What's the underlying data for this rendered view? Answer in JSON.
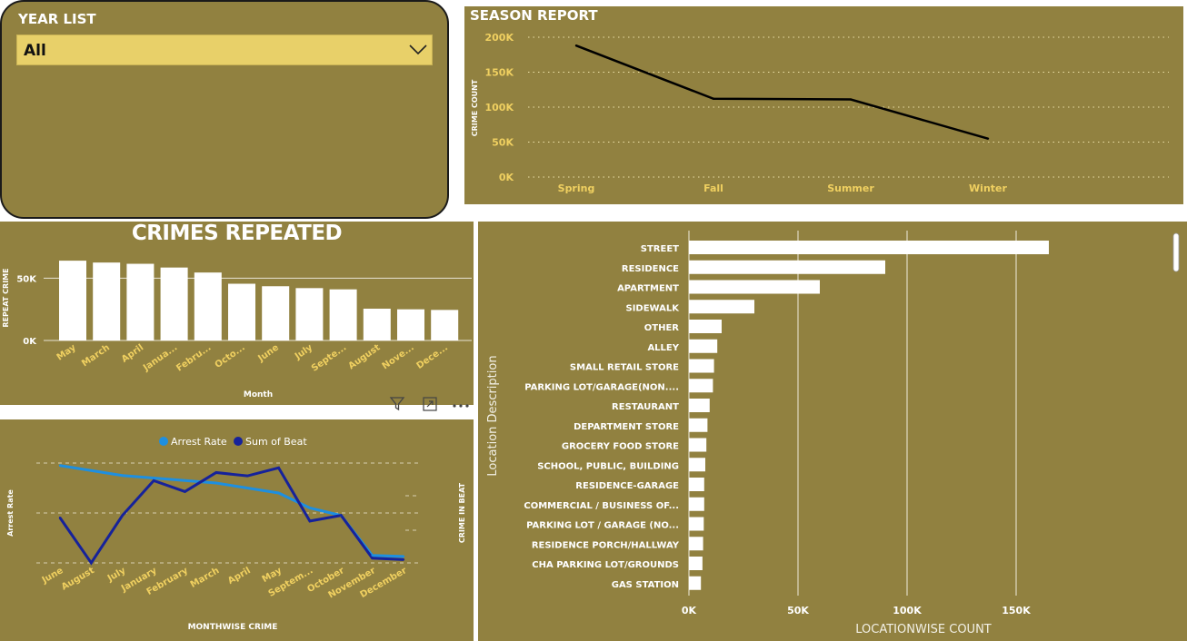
{
  "year_filter": {
    "title": "YEAR LIST",
    "selected": "All",
    "icon": "chevron-down-icon"
  },
  "toolbar": {
    "icons": [
      "filter-icon",
      "focus-mode-icon",
      "more-options-icon"
    ]
  },
  "colors": {
    "panel_bg": "#918140",
    "dropdown_bg": "#e8d069",
    "tick_label": "#f0d060",
    "arrest_rate": "#1e8fe0",
    "sum_of_beat": "#16229a"
  },
  "chart_data": [
    {
      "id": "season",
      "type": "line",
      "title": "SEASON REPORT",
      "xlabel": "",
      "ylabel": "CRIME COUNT",
      "categories": [
        "Spring",
        "Fall",
        "Summer",
        "Winter"
      ],
      "values": [
        188000,
        112000,
        111000,
        55000
      ],
      "ylim": [
        0,
        200000
      ],
      "yticks": [
        0,
        50000,
        100000,
        150000,
        200000
      ],
      "ytick_labels": [
        "0K",
        "50K",
        "100K",
        "150K",
        "200K"
      ],
      "grid": true
    },
    {
      "id": "repeat",
      "type": "bar",
      "title": "CRIMES REPEATED",
      "xlabel": "Month",
      "ylabel": "REPEAT CRIME",
      "categories": [
        "May",
        "March",
        "April",
        "Janua...",
        "Febru...",
        "Octo...",
        "June",
        "July",
        "Septe...",
        "August",
        "Nove...",
        "Dece..."
      ],
      "values": [
        64000,
        62500,
        61500,
        58500,
        54500,
        45500,
        43500,
        42000,
        41000,
        25500,
        25000,
        24500
      ],
      "ylim": [
        0,
        75000
      ],
      "yticks": [
        0,
        50000
      ],
      "ytick_labels": [
        "0K",
        "50K"
      ],
      "grid": true
    },
    {
      "id": "month",
      "type": "line",
      "title": "",
      "xlabel": "MONTHWISE CRIME",
      "ylabel": "Arrest Rate",
      "y2label": "CRIME IN BEAT",
      "legend": "top",
      "categories": [
        "June",
        "August",
        "July",
        "January",
        "February",
        "March",
        "April",
        "May",
        "Septem...",
        "October",
        "November",
        "December"
      ],
      "series": [
        {
          "name": "Arrest Rate",
          "axis": "left",
          "values": [
            0.295,
            0.285,
            0.275,
            0.27,
            0.265,
            0.26,
            0.25,
            0.24,
            0.21,
            0.195,
            0.115,
            0.113
          ]
        },
        {
          "name": "Sum of Beat",
          "axis": "right",
          "values": [
            47.5,
            38.0,
            48.0,
            55.3,
            53.0,
            57.0,
            56.3,
            58.0,
            46.8,
            48.0,
            39.0,
            38.7
          ]
        }
      ],
      "ylim": [
        0.1,
        0.3
      ],
      "y2lim": [
        38,
        59
      ],
      "grid": true
    },
    {
      "id": "location",
      "type": "bar",
      "orientation": "horizontal",
      "title": "",
      "xlabel": "LOCATIONWISE COUNT",
      "ylabel": "Location Description",
      "categories": [
        "STREET",
        "RESIDENCE",
        "APARTMENT",
        "SIDEWALK",
        "OTHER",
        "ALLEY",
        "SMALL RETAIL STORE",
        "PARKING LOT/GARAGE(NON....",
        "RESTAURANT",
        "DEPARTMENT STORE",
        "GROCERY FOOD STORE",
        "SCHOOL, PUBLIC, BUILDING",
        "RESIDENCE-GARAGE",
        "COMMERCIAL / BUSINESS OF...",
        "PARKING LOT / GARAGE (NO...",
        "RESIDENCE PORCH/HALLWAY",
        "CHA PARKING LOT/GROUNDS",
        "GAS STATION"
      ],
      "values": [
        165000,
        90000,
        60000,
        30000,
        15000,
        13000,
        11500,
        11000,
        9500,
        8500,
        8000,
        7500,
        7000,
        7000,
        6800,
        6500,
        6200,
        5500
      ],
      "xlim": [
        0,
        180000
      ],
      "xticks": [
        0,
        50000,
        100000,
        150000
      ],
      "xtick_labels": [
        "0K",
        "50K",
        "100K",
        "150K"
      ],
      "grid": true
    }
  ]
}
